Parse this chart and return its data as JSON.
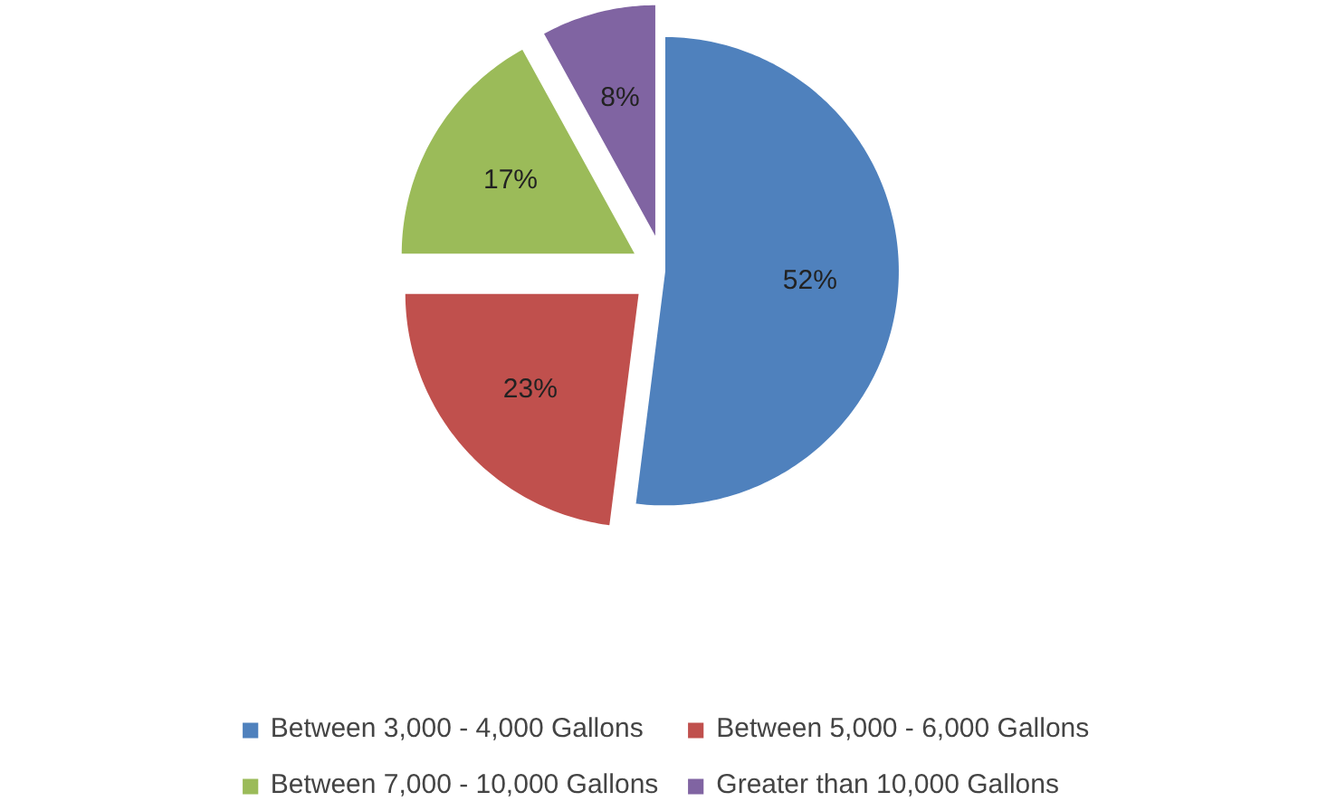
{
  "chart_data": {
    "type": "pie",
    "categories": [
      "Between 3,000 - 4,000 Gallons",
      "Between 5,000 - 6,000 Gallons",
      "Between 7,000 - 10,000 Gallons",
      "Greater than 10,000 Gallons"
    ],
    "values": [
      52,
      23,
      17,
      8
    ],
    "colors": [
      "#4f81bd",
      "#c0504d",
      "#9bbb59",
      "#8064a2"
    ],
    "value_labels": [
      "52%",
      "23%",
      "17%",
      "8%"
    ],
    "legend": "bottom"
  }
}
